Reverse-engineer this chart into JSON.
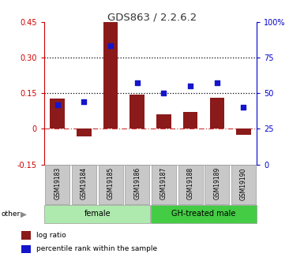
{
  "title": "GDS863 / 2.2.6.2",
  "samples": [
    "GSM19183",
    "GSM19184",
    "GSM19185",
    "GSM19186",
    "GSM19187",
    "GSM19188",
    "GSM19189",
    "GSM19190"
  ],
  "log_ratio": [
    0.128,
    -0.03,
    0.448,
    0.143,
    0.06,
    0.07,
    0.132,
    -0.025
  ],
  "percentile_rank": [
    0.42,
    0.44,
    0.83,
    0.57,
    0.5,
    0.55,
    0.57,
    0.4
  ],
  "bar_color": "#8B1A1A",
  "dot_color": "#1515CC",
  "ylim_left": [
    -0.15,
    0.45
  ],
  "ylim_right": [
    0,
    1.0
  ],
  "yticks_left": [
    -0.15,
    0.0,
    0.15,
    0.3,
    0.45
  ],
  "ytick_labels_left": [
    "-0.15",
    "0",
    "0.15",
    "0.30",
    "0.45"
  ],
  "yticks_right": [
    0.0,
    0.25,
    0.5,
    0.75,
    1.0
  ],
  "ytick_labels_right": [
    "0",
    "25",
    "50",
    "75",
    "100%"
  ],
  "hlines": [
    0.15,
    0.3
  ],
  "zero_line": 0.0,
  "groups": [
    {
      "label": "female",
      "start": 0,
      "end": 4,
      "color": "#AEEAAE"
    },
    {
      "label": "GH-treated male",
      "start": 4,
      "end": 8,
      "color": "#44CC44"
    }
  ],
  "other_label": "other",
  "legend_items": [
    {
      "label": "log ratio",
      "color": "#8B1A1A"
    },
    {
      "label": "percentile rank within the sample",
      "color": "#1515CC"
    }
  ],
  "title_color": "#333333",
  "left_axis_color": "#CC0000",
  "right_axis_color": "#0000CC",
  "sample_box_color": "#C8C8C8",
  "bar_width": 0.55
}
